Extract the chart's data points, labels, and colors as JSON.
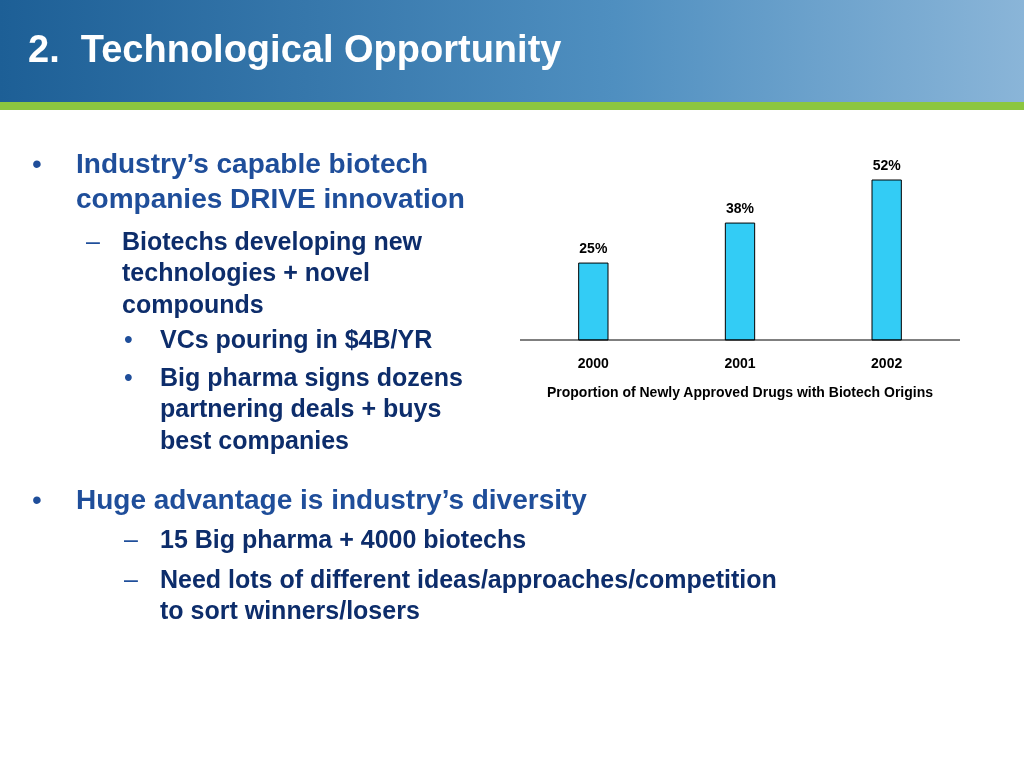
{
  "chart_data": {
    "type": "bar",
    "title": "2.  Technological Opportunity",
    "categories": [
      "2000",
      "2001",
      "2002"
    ],
    "values": [
      25,
      38,
      52
    ],
    "value_labels": [
      "25%",
      "38%",
      "52%"
    ],
    "color": "#33ccf5",
    "xlabel": "Proportion of Newly Approved Drugs with Biotech Origins",
    "annotations": [
      "• Industry’s capable biotech companies DRIVE innovation",
      "– Biotechs developing new technologies + novel compounds",
      "• VCs pouring in $4B/YR",
      "• Big pharma signs dozens partnering deals + buys best companies",
      "• Huge advantage is industry’s diversity",
      "– 15 Big pharma + 4000 biotechs",
      "– Need lots of different ideas/approaches/competition to sort winners/losers"
    ]
  }
}
